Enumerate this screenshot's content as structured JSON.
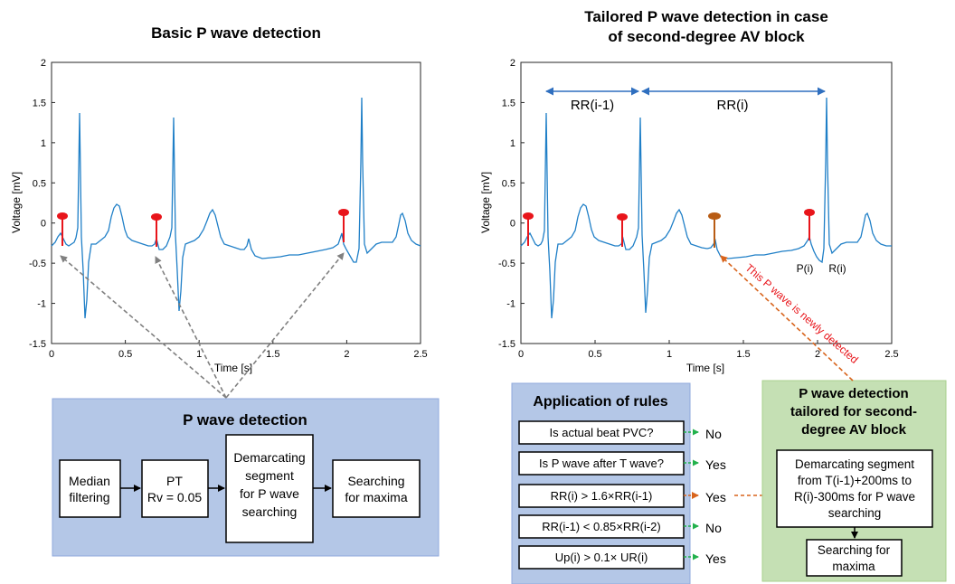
{
  "left_chart": {
    "title": "Basic P wave detection",
    "ylabel": "Voltage [mV]",
    "xlabel": "Time [s]",
    "xticks": [
      "0",
      "0.5",
      "1",
      "1.5",
      "2",
      "2.5"
    ],
    "yticks": [
      "2",
      "1.5",
      "1",
      "0.5",
      "0",
      "-0.5",
      "-1",
      "-1.5"
    ]
  },
  "right_chart": {
    "title_line1": "Tailored P wave detection in case",
    "title_line2": "of second-degree AV block",
    "ylabel": "Voltage [mV]",
    "xlabel": "Time [s]",
    "xticks": [
      "0",
      "0.5",
      "1",
      "1.5",
      "2",
      "2.5"
    ],
    "yticks": [
      "2",
      "1.5",
      "1",
      "0.5",
      "0",
      "-0.5",
      "-1",
      "-1.5"
    ],
    "rr_prev_label": "RR(i-1)",
    "rr_label": "RR(i)",
    "p_label": "P(i)",
    "r_label": "R(i)",
    "annotation": "This P wave is newly detected"
  },
  "p_detection_panel": {
    "title": "P wave detection",
    "steps": [
      "Median filtering",
      "PT Rv = 0.05",
      "Demarcating segment for P wave searching",
      "Searching for maxima"
    ]
  },
  "rules_panel": {
    "title": "Application of rules",
    "rules": [
      {
        "text": "Is actual beat   PVC?",
        "result": "No"
      },
      {
        "text": "Is P wave after T wave?",
        "result": "Yes"
      },
      {
        "text": "RR(i) > 1.6×RR(i-1)",
        "result": "Yes"
      },
      {
        "text": "RR(i-1) < 0.85×RR(i-2)",
        "result": "No"
      },
      {
        "text": "Up(i) > 0.1× UR(i)",
        "result": "Yes"
      }
    ]
  },
  "tailored_panel": {
    "title": "P wave detection tailored for second-degree AV block",
    "segment_text": "Demarcating segment from T(i-1)+200ms to R(i)-300ms for P wave searching",
    "search_text": "Searching for maxima"
  },
  "colors": {
    "signal": "#1f7fc7",
    "marker_red": "#e8151b",
    "marker_orange": "#b85c14",
    "blue_panel": "#b4c7e7",
    "green_panel": "#c5e0b4",
    "green_arrow": "#22b14c",
    "orange_arrow": "#d8641c",
    "annotation_red": "#e8151b"
  }
}
